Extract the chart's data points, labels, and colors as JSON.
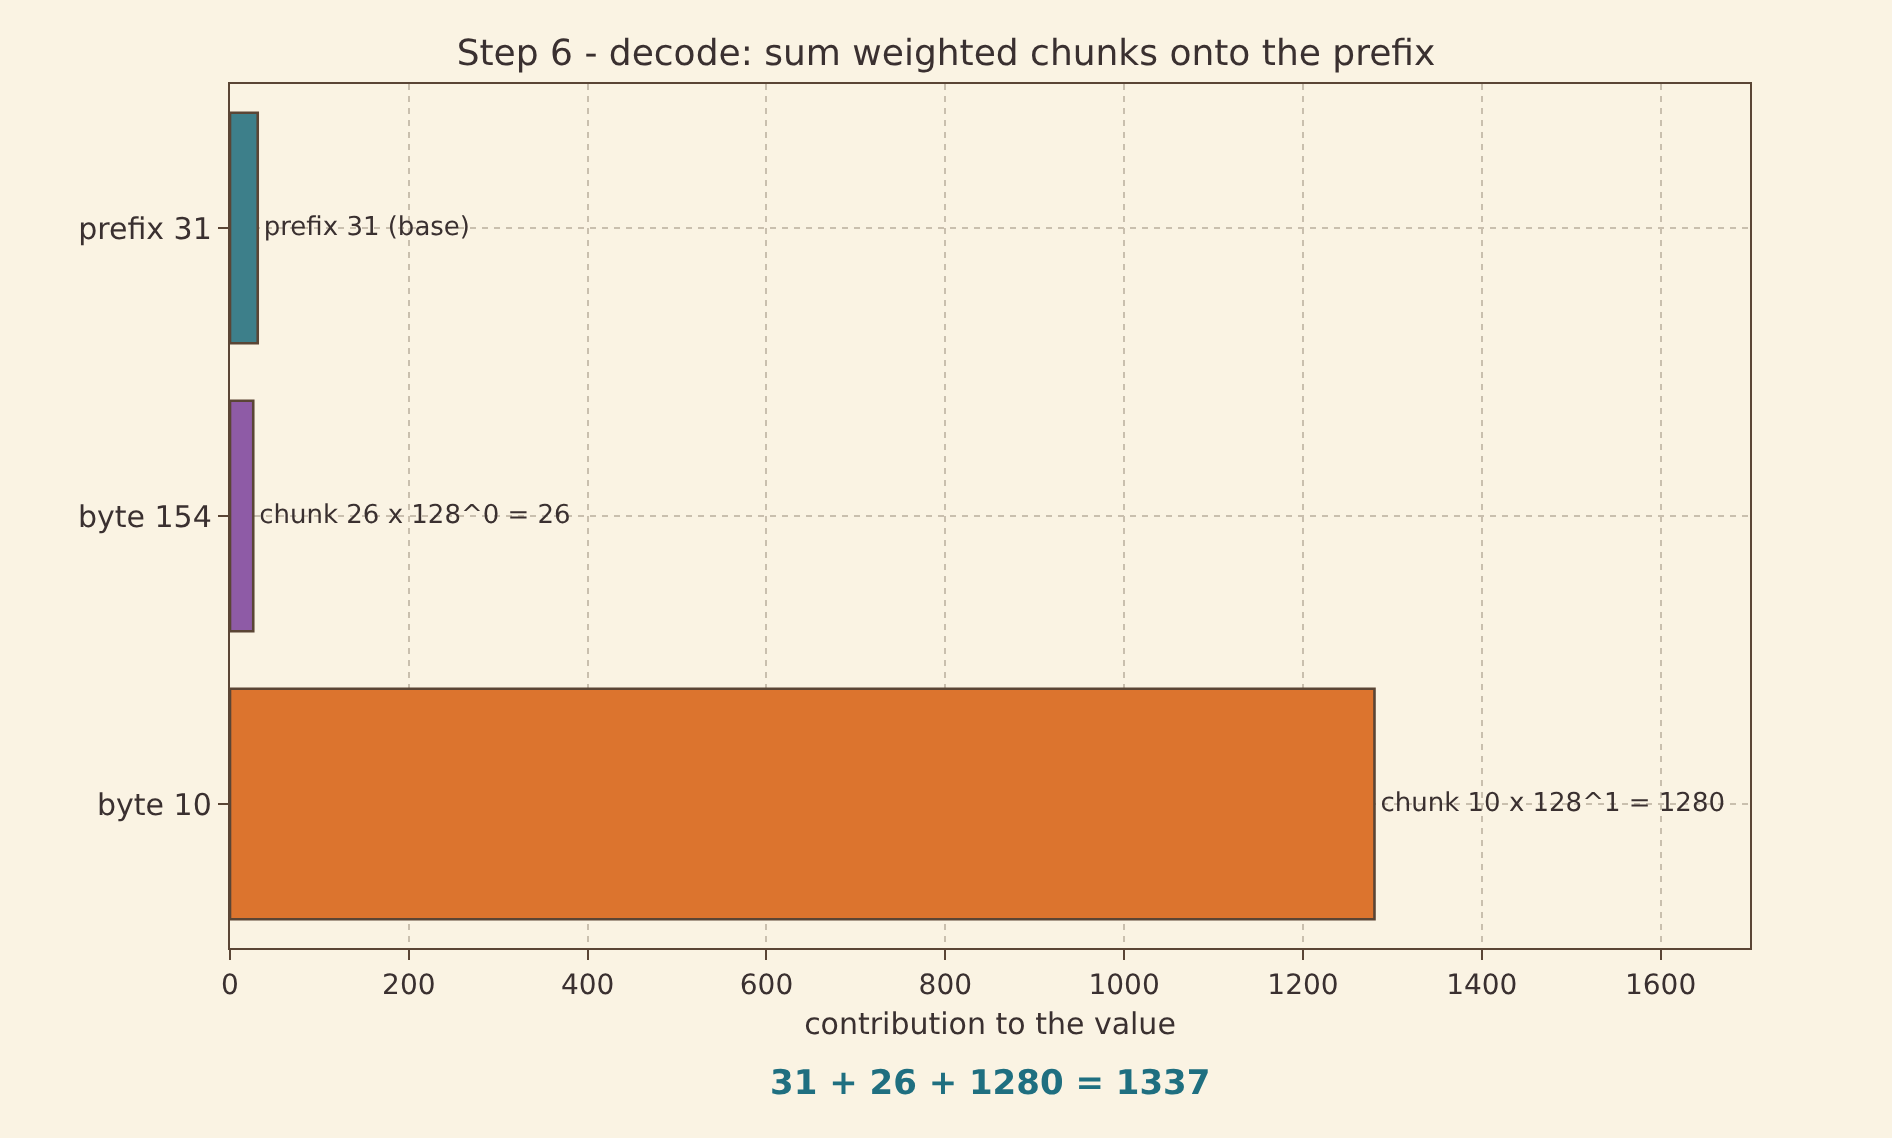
{
  "chart_data": {
    "type": "bar",
    "orientation": "horizontal",
    "title": "Step 6 - decode: sum weighted chunks onto the prefix",
    "xlabel": "contribution to the value",
    "categories": [
      "prefix 31",
      "byte 154",
      "byte 10"
    ],
    "values": [
      31,
      26,
      1280
    ],
    "colors": [
      "#3d7f8a",
      "#8e5ba6",
      "#dc742e"
    ],
    "value_labels": [
      "prefix 31 (base)",
      "chunk 26 x 128^0 = 26",
      "chunk 10 x 128^1 = 1280"
    ],
    "xlim": [
      0,
      1700
    ],
    "xticks": [
      0,
      200,
      400,
      600,
      800,
      1000,
      1200,
      1400,
      1600
    ],
    "grid": true,
    "annotations": [
      "31 + 26 + 1280 = 1337"
    ]
  }
}
